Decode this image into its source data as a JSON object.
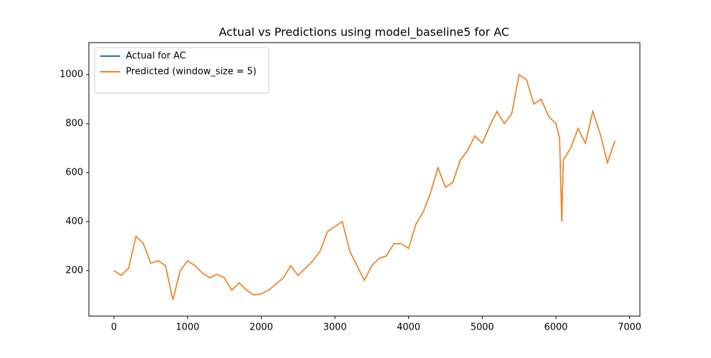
{
  "chart_data": {
    "type": "line",
    "title": "Actual vs Predictions using model_baseline5 for AC",
    "x": [
      0,
      100,
      200,
      300,
      400,
      500,
      600,
      700,
      800,
      900,
      1000,
      1100,
      1200,
      1300,
      1400,
      1500,
      1600,
      1700,
      1800,
      1900,
      2000,
      2100,
      2200,
      2300,
      2400,
      2500,
      2600,
      2700,
      2800,
      2900,
      3000,
      3100,
      3200,
      3300,
      3400,
      3500,
      3600,
      3700,
      3800,
      3900,
      4000,
      4100,
      4200,
      4300,
      4400,
      4500,
      4600,
      4700,
      4800,
      4900,
      5000,
      5100,
      5200,
      5300,
      5400,
      5500,
      5600,
      5700,
      5800,
      5900,
      6000,
      6050,
      6080,
      6100,
      6200,
      6300,
      6400,
      6500,
      6600,
      6700,
      6800
    ],
    "series": [
      {
        "name": "Actual for AC",
        "color": "#1f77b4",
        "values": [
          200,
          180,
          210,
          340,
          310,
          230,
          240,
          220,
          80,
          200,
          240,
          220,
          190,
          170,
          185,
          170,
          120,
          150,
          120,
          100,
          105,
          120,
          145,
          170,
          220,
          180,
          210,
          240,
          280,
          360,
          380,
          400,
          280,
          220,
          160,
          220,
          250,
          260,
          310,
          310,
          290,
          390,
          440,
          520,
          620,
          540,
          560,
          650,
          690,
          750,
          720,
          790,
          850,
          800,
          840,
          1000,
          980,
          880,
          900,
          830,
          800,
          740,
          400,
          650,
          700,
          780,
          720,
          850,
          760,
          640,
          730
        ]
      },
      {
        "name": "Predicted (window_size = 5)",
        "color": "#ff7f0e",
        "values": [
          200,
          180,
          210,
          340,
          310,
          230,
          240,
          220,
          80,
          200,
          240,
          220,
          190,
          170,
          185,
          170,
          120,
          150,
          120,
          100,
          105,
          120,
          145,
          170,
          220,
          180,
          210,
          240,
          280,
          360,
          380,
          400,
          280,
          220,
          160,
          220,
          250,
          260,
          310,
          310,
          290,
          390,
          440,
          520,
          620,
          540,
          560,
          650,
          690,
          750,
          720,
          790,
          850,
          800,
          840,
          1000,
          980,
          880,
          900,
          830,
          800,
          740,
          400,
          650,
          700,
          780,
          720,
          850,
          760,
          640,
          730
        ]
      }
    ],
    "xlim": [
      -340,
      7140
    ],
    "ylim": [
      14,
      1131
    ],
    "xticks": [
      0,
      1000,
      2000,
      3000,
      4000,
      5000,
      6000,
      7000
    ],
    "yticks": [
      200,
      400,
      600,
      800,
      1000
    ],
    "legend": "upper left"
  }
}
